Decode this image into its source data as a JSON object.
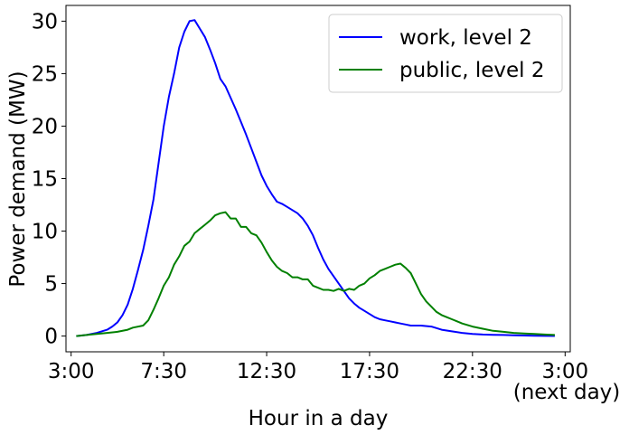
{
  "chart_data": {
    "type": "line",
    "xlabel": "Hour in a day",
    "ylabel": "Power demand (MW)",
    "xlim": [
      2.75,
      27.25
    ],
    "ylim": [
      -1.5,
      31.5
    ],
    "x_ticks": [
      {
        "value": 3,
        "label": "3:00"
      },
      {
        "value": 7.5,
        "label": "7:30"
      },
      {
        "value": 12.5,
        "label": "12:30"
      },
      {
        "value": 17.5,
        "label": "17:30"
      },
      {
        "value": 22.5,
        "label": "22:30"
      },
      {
        "value": 27,
        "label": "3:00"
      }
    ],
    "x_tick_note": "(next day)",
    "y_ticks": [
      0,
      5,
      10,
      15,
      20,
      25,
      30
    ],
    "grid": false,
    "legend": "top-right",
    "series": [
      {
        "name": "work, level 2",
        "color": "#0000ff",
        "x": [
          3.25,
          3.75,
          4.25,
          4.75,
          5.0,
          5.25,
          5.5,
          5.75,
          6.0,
          6.25,
          6.5,
          6.75,
          7.0,
          7.25,
          7.5,
          7.75,
          8.0,
          8.25,
          8.5,
          8.75,
          9.0,
          9.25,
          9.5,
          9.75,
          10.0,
          10.25,
          10.5,
          10.75,
          11.0,
          11.25,
          11.5,
          11.75,
          12.0,
          12.25,
          12.5,
          12.75,
          13.0,
          13.25,
          13.5,
          13.75,
          14.0,
          14.25,
          14.5,
          14.75,
          15.0,
          15.25,
          15.5,
          15.75,
          16.0,
          16.25,
          16.5,
          16.75,
          17.0,
          17.25,
          17.5,
          17.75,
          18.0,
          18.25,
          18.5,
          18.75,
          19.0,
          19.25,
          19.5,
          19.75,
          20.0,
          20.5,
          21.0,
          21.5,
          22.0,
          22.5,
          23.0,
          23.5,
          24.0,
          24.5,
          25.0,
          25.5,
          26.0,
          26.5
        ],
        "y": [
          0.0,
          0.1,
          0.3,
          0.6,
          0.9,
          1.3,
          2.0,
          3.0,
          4.5,
          6.3,
          8.2,
          10.5,
          13.0,
          16.5,
          20.0,
          22.8,
          25.0,
          27.5,
          29.0,
          30.0,
          30.1,
          29.3,
          28.5,
          27.3,
          26.0,
          24.5,
          23.8,
          22.7,
          21.6,
          20.4,
          19.2,
          17.9,
          16.6,
          15.3,
          14.3,
          13.5,
          12.8,
          12.6,
          12.3,
          12.0,
          11.7,
          11.2,
          10.5,
          9.6,
          8.4,
          7.3,
          6.4,
          5.7,
          5.0,
          4.3,
          3.6,
          3.1,
          2.7,
          2.4,
          2.1,
          1.8,
          1.6,
          1.5,
          1.4,
          1.3,
          1.2,
          1.1,
          1.0,
          1.0,
          1.0,
          0.9,
          0.6,
          0.45,
          0.3,
          0.2,
          0.15,
          0.12,
          0.1,
          0.08,
          0.05,
          0.03,
          0.02,
          0.01
        ]
      },
      {
        "name": "public, level 2",
        "color": "#008000",
        "x": [
          3.25,
          3.75,
          4.25,
          4.75,
          5.25,
          5.75,
          6.0,
          6.5,
          6.75,
          7.0,
          7.25,
          7.5,
          7.75,
          8.0,
          8.25,
          8.5,
          8.75,
          9.0,
          9.25,
          9.5,
          9.75,
          10.0,
          10.25,
          10.5,
          10.75,
          11.0,
          11.25,
          11.5,
          11.75,
          12.0,
          12.25,
          12.5,
          12.75,
          13.0,
          13.25,
          13.5,
          13.75,
          14.0,
          14.25,
          14.5,
          14.75,
          15.0,
          15.25,
          15.5,
          15.75,
          16.0,
          16.25,
          16.5,
          16.75,
          17.0,
          17.25,
          17.5,
          17.75,
          18.0,
          18.25,
          18.5,
          18.75,
          19.0,
          19.25,
          19.5,
          19.75,
          20.0,
          20.25,
          20.5,
          20.75,
          21.0,
          21.25,
          21.5,
          21.75,
          22.0,
          22.5,
          23.0,
          23.5,
          24.0,
          24.5,
          25.0,
          25.5,
          26.0,
          26.5
        ],
        "y": [
          0.0,
          0.1,
          0.2,
          0.3,
          0.4,
          0.6,
          0.8,
          1.0,
          1.5,
          2.5,
          3.6,
          4.8,
          5.6,
          6.8,
          7.6,
          8.6,
          9.0,
          9.8,
          10.2,
          10.6,
          11.0,
          11.5,
          11.7,
          11.8,
          11.2,
          11.2,
          10.4,
          10.4,
          9.8,
          9.6,
          8.9,
          8.0,
          7.2,
          6.6,
          6.2,
          6.0,
          5.6,
          5.6,
          5.4,
          5.4,
          4.8,
          4.6,
          4.4,
          4.4,
          4.3,
          4.5,
          4.3,
          4.5,
          4.4,
          4.8,
          5.0,
          5.5,
          5.8,
          6.2,
          6.4,
          6.6,
          6.8,
          6.9,
          6.5,
          6.0,
          5.0,
          4.0,
          3.3,
          2.8,
          2.3,
          2.0,
          1.8,
          1.6,
          1.4,
          1.2,
          0.9,
          0.7,
          0.5,
          0.4,
          0.3,
          0.25,
          0.2,
          0.15,
          0.1
        ]
      }
    ]
  }
}
